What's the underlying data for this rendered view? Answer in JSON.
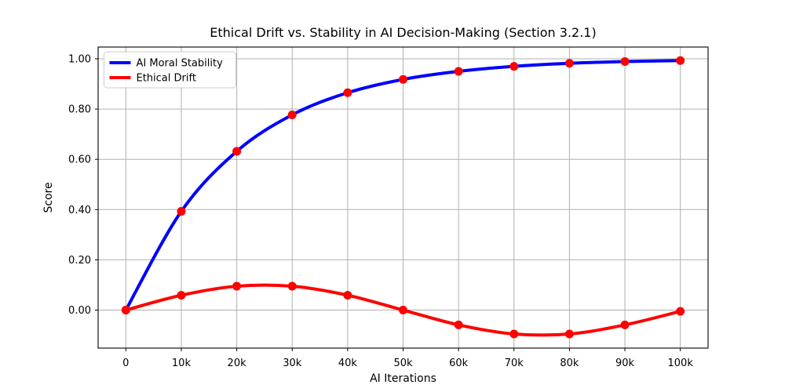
{
  "figure": {
    "background": "#ffffff",
    "spine_color": "#000000",
    "text_color": "#000000"
  },
  "chart_data": {
    "type": "line",
    "title": "Ethical Drift vs. Stability in AI Decision-Making (Section 3.2.1)",
    "xlabel": "AI Iterations",
    "ylabel": "Score",
    "x": [
      0,
      10000,
      20000,
      30000,
      40000,
      50000,
      60000,
      70000,
      80000,
      90000,
      100000
    ],
    "x_tick_labels": [
      "0",
      "10k",
      "20k",
      "30k",
      "40k",
      "50k",
      "60k",
      "70k",
      "80k",
      "90k",
      "100k"
    ],
    "y_ticks": [
      0.0,
      0.2,
      0.4,
      0.6,
      0.8,
      1.0
    ],
    "y_tick_labels": [
      "0.00",
      "0.20",
      "0.40",
      "0.60",
      "0.80",
      "1.00"
    ],
    "xlim": [
      -5000,
      105000
    ],
    "ylim": [
      -0.1513,
      1.0468
    ],
    "grid": true,
    "grid_color": "#b0b0b0",
    "marker": {
      "shape": "circle",
      "color": "#ff0000",
      "radius": 5.5
    },
    "legend": {
      "position": "upper-left"
    },
    "series": [
      {
        "name": "AI Moral Stability",
        "color": "#0000ff",
        "values": [
          0.0,
          0.393,
          0.632,
          0.777,
          0.865,
          0.918,
          0.95,
          0.97,
          0.982,
          0.989,
          0.993
        ]
      },
      {
        "name": "Ethical Drift",
        "color": "#ff0000",
        "values": [
          0.0,
          0.059,
          0.095,
          0.095,
          0.059,
          0.0,
          -0.059,
          -0.095,
          -0.095,
          -0.059,
          -0.005
        ]
      }
    ]
  }
}
